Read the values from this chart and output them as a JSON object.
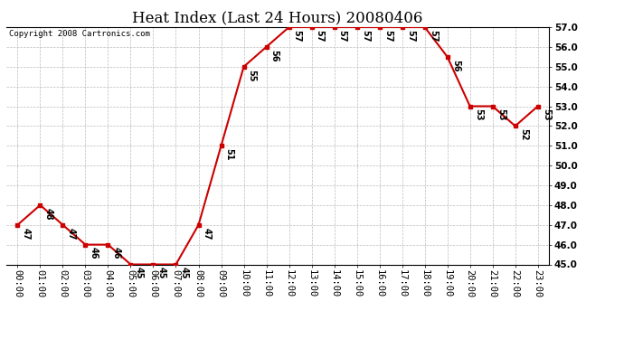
{
  "title": "Heat Index (Last 24 Hours) 20080406",
  "copyright": "Copyright 2008 Cartronics.com",
  "hours": [
    "00:00",
    "01:00",
    "02:00",
    "03:00",
    "04:00",
    "05:00",
    "06:00",
    "07:00",
    "08:00",
    "09:00",
    "10:00",
    "11:00",
    "12:00",
    "13:00",
    "14:00",
    "15:00",
    "16:00",
    "17:00",
    "18:00",
    "19:00",
    "20:00",
    "21:00",
    "22:00",
    "23:00"
  ],
  "values": [
    47,
    48,
    47,
    46,
    46,
    45,
    45,
    45,
    47,
    51,
    55,
    56,
    57,
    57,
    57,
    57,
    57,
    57,
    57,
    55.5,
    53,
    53,
    52,
    53
  ],
  "ylim": [
    45.0,
    57.0
  ],
  "yticks": [
    45.0,
    46.0,
    47.0,
    48.0,
    49.0,
    50.0,
    51.0,
    52.0,
    53.0,
    54.0,
    55.0,
    56.0,
    57.0
  ],
  "line_color": "#cc0000",
  "marker_color": "#cc0000",
  "bg_color": "#ffffff",
  "plot_bg_color": "#ffffff",
  "grid_color": "#bbbbbb",
  "title_fontsize": 12,
  "label_fontsize": 7,
  "tick_fontsize": 7.5,
  "copyright_fontsize": 6.5
}
